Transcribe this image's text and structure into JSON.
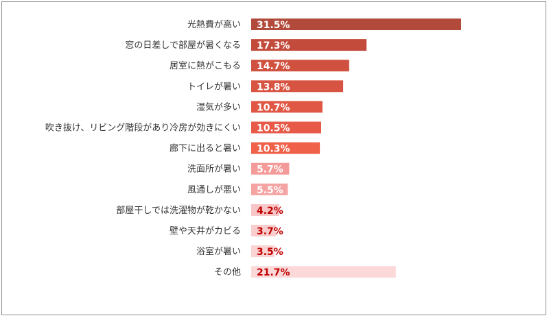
{
  "chart_data": {
    "type": "bar",
    "orientation": "horizontal",
    "categories": [
      "光熱費が高い",
      "窓の日差しで部屋が暑くなる",
      "居室に熱がこもる",
      "トイレが暑い",
      "湿気が多い",
      "吹き抜け、リビング階段があり冷房が効きにくい",
      "廊下に出ると暑い",
      "洗面所が暑い",
      "風通しが悪い",
      "部屋干しでは洗濯物が乾かない",
      "壁や天井がカビる",
      "浴室が暑い",
      "その他"
    ],
    "values": [
      31.5,
      17.3,
      14.7,
      13.8,
      10.7,
      10.5,
      10.3,
      5.7,
      5.5,
      4.2,
      3.7,
      3.5,
      21.7
    ],
    "value_labels": [
      "31.5%",
      "17.3%",
      "14.7%",
      "13.8%",
      "10.7%",
      "10.5%",
      "10.3%",
      "5.7%",
      "5.5%",
      "4.2%",
      "3.7%",
      "3.5%",
      "21.7%"
    ],
    "bar_colors": [
      "#b24a3b",
      "#c24b3b",
      "#d0513f",
      "#d85442",
      "#e05845",
      "#e65a47",
      "#f06149",
      "#f49a98",
      "#f4a4a2",
      "#f8c6c6",
      "#f9cdcd",
      "#fad3d3",
      "#fbd9d9"
    ],
    "label_colors": [
      "#ffffff",
      "#ffffff",
      "#ffffff",
      "#ffffff",
      "#ffffff",
      "#ffffff",
      "#ffffff",
      "#ffffff",
      "#ffffff",
      "#c00000",
      "#c00000",
      "#c00000",
      "#c00000"
    ],
    "xlim": [
      0,
      32
    ],
    "grid": false,
    "legend": "none"
  }
}
